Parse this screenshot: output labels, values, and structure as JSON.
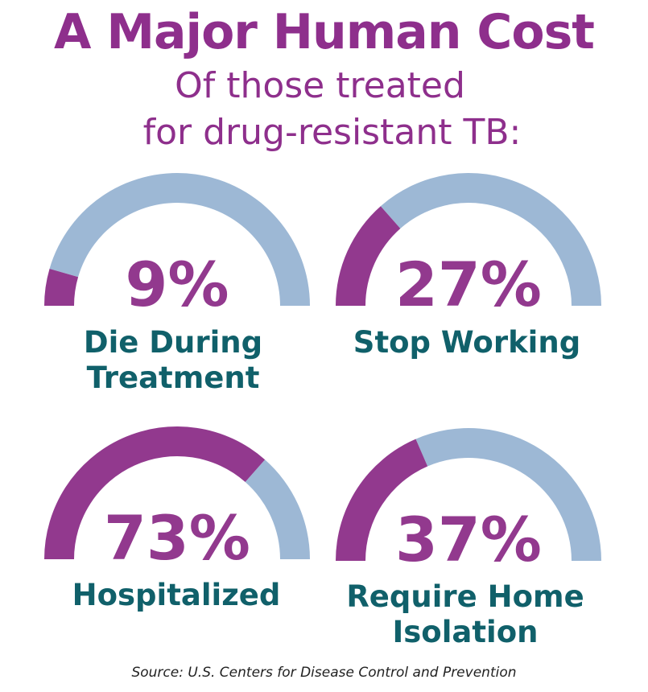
{
  "title": "A Major Human Cost",
  "subtitle_line1": "Of those treated",
  "subtitle_line2": "for drug-resistant TB:",
  "source": "Source: U.S. Centers for Disease Control and Prevention",
  "colors": {
    "title": "#8e2f8c",
    "value_fill": "#92398e",
    "track": "#9db8d5",
    "label": "#10606a"
  },
  "chart_data": {
    "type": "gauge",
    "range": [
      0,
      100
    ],
    "unit": "%",
    "gauges": [
      {
        "label_lines": [
          "Die During",
          "Treatment"
        ],
        "value": 9,
        "value_text": "9%"
      },
      {
        "label_lines": [
          "Stop Working"
        ],
        "value": 27,
        "value_text": "27%"
      },
      {
        "label_lines": [
          "Hospitalized"
        ],
        "value": 73,
        "value_text": "73%"
      },
      {
        "label_lines": [
          "Require Home",
          "Isolation"
        ],
        "value": 37,
        "value_text": "37%"
      }
    ]
  }
}
